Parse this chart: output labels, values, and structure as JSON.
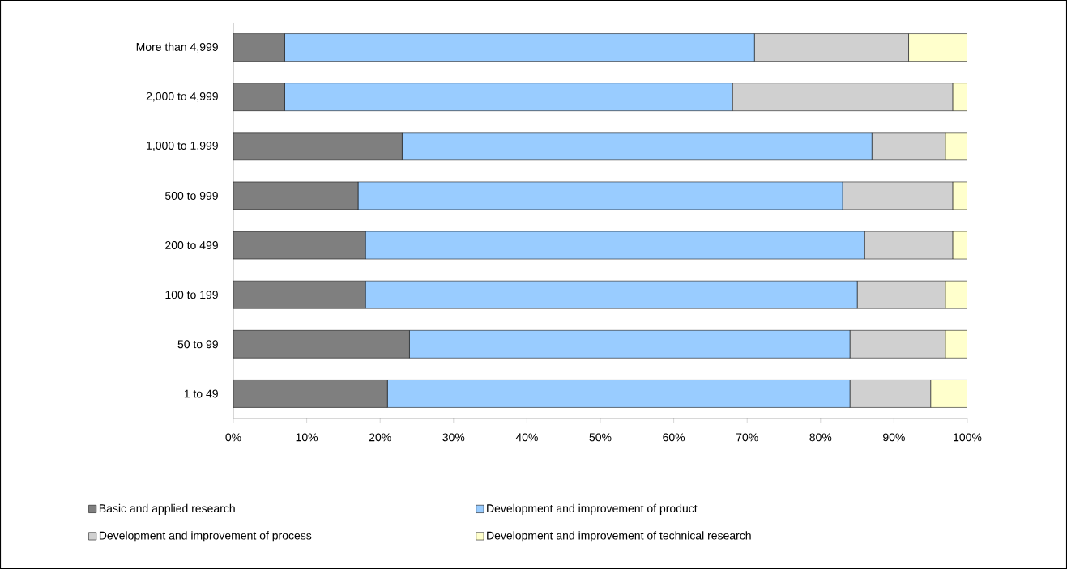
{
  "chart_data": {
    "type": "bar",
    "orientation": "horizontal",
    "stacked": true,
    "legend": "bottom",
    "categories": [
      "More than 4,999",
      "2,000 to 4,999",
      "1,000 to 1,999",
      "500 to 999",
      "200 to 499",
      "100 to 199",
      "50 to 99",
      "1 to 49"
    ],
    "series": [
      {
        "name": "Basic and applied research",
        "color": "#7f7f7f",
        "values": [
          7,
          7,
          23,
          17,
          18,
          18,
          24,
          21
        ]
      },
      {
        "name": "Development and improvement of product",
        "color": "#99ccff",
        "values": [
          64,
          61,
          64,
          66,
          68,
          67,
          60,
          63
        ]
      },
      {
        "name": "Development and improvement of process",
        "color": "#d0d0d0",
        "values": [
          21,
          30,
          10,
          15,
          12,
          12,
          13,
          11
        ]
      },
      {
        "name": "Development and improvement of technical research",
        "color": "#ffffcc",
        "values": [
          8,
          2,
          3,
          2,
          2,
          3,
          3,
          5
        ]
      }
    ],
    "xlim": [
      0,
      100
    ],
    "xticks": [
      {
        "value": 0,
        "label": "0%"
      },
      {
        "value": 10,
        "label": "10%"
      },
      {
        "value": 20,
        "label": "20%"
      },
      {
        "value": 30,
        "label": "30%"
      },
      {
        "value": 40,
        "label": "40%"
      },
      {
        "value": 50,
        "label": "50%"
      },
      {
        "value": 60,
        "label": "60%"
      },
      {
        "value": 70,
        "label": "70%"
      },
      {
        "value": 80,
        "label": "80%"
      },
      {
        "value": 90,
        "label": "90%"
      },
      {
        "value": 100,
        "label": "100%"
      }
    ]
  }
}
